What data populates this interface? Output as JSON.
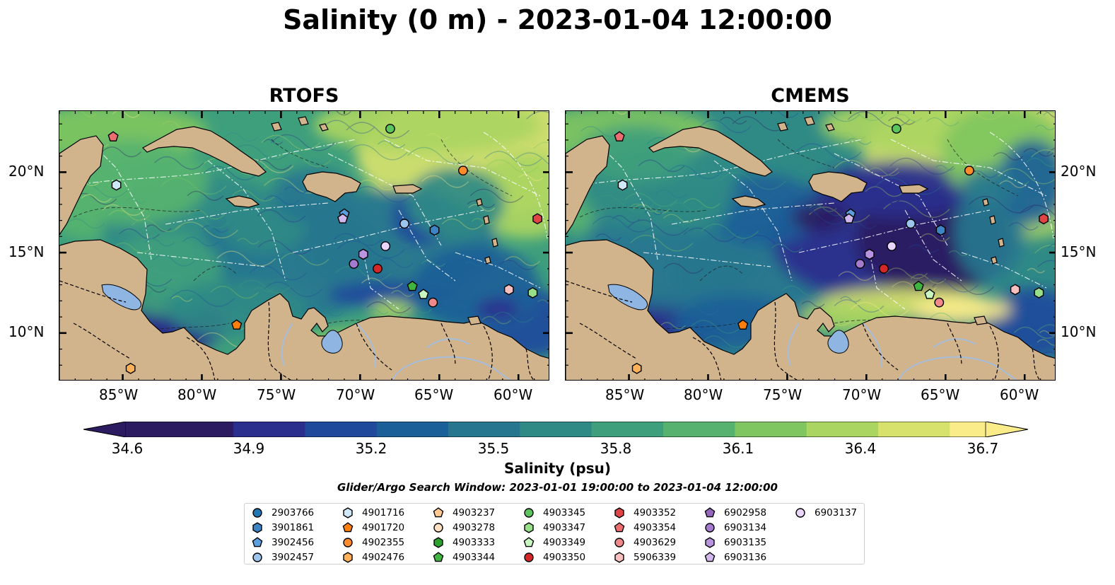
{
  "title": "Salinity (0 m) - 2023-01-04 12:00:00",
  "panels": [
    {
      "title": "RTOFS",
      "variant": "rtofs"
    },
    {
      "title": "CMEMS",
      "variant": "cmems"
    }
  ],
  "axes": {
    "lon_ticks": [
      "85°W",
      "80°W",
      "75°W",
      "70°W",
      "65°W",
      "60°W"
    ],
    "lat_ticks": [
      "20°N",
      "15°N",
      "10°N"
    ],
    "lon_range": [
      -89,
      -58
    ],
    "lat_range": [
      7.0,
      23.8
    ]
  },
  "colorbar": {
    "label": "Salinity (psu)",
    "ticks": [
      "34.6",
      "34.9",
      "35.2",
      "35.5",
      "35.8",
      "36.1",
      "36.4",
      "36.7"
    ],
    "range": [
      34.6,
      36.7
    ],
    "cmap": [
      "#2c1b61",
      "#2a2f8e",
      "#1f4a9c",
      "#1b5f98",
      "#26768f",
      "#2f8a86",
      "#3e9f7c",
      "#56b36f",
      "#7fc560",
      "#aad561",
      "#d7e26c",
      "#fbec8a"
    ],
    "extend": "both"
  },
  "search_window": "Glider/Argo Search Window: 2023-01-01 19:00:00 to 2023-01-04 12:00:00",
  "colors": {
    "land": "#d2b48c",
    "river": "#a6bddb",
    "lake": "#8fb5e3"
  },
  "floats": [
    {
      "id": "2903766",
      "marker": "circle",
      "color": "#1f77b4",
      "lon": null,
      "lat": null
    },
    {
      "id": "3901861",
      "marker": "hexagon",
      "color": "#3c84c4",
      "lon": -65.3,
      "lat": 16.4
    },
    {
      "id": "3902456",
      "marker": "pentagon",
      "color": "#5b9fde",
      "lon": -71.0,
      "lat": 17.4
    },
    {
      "id": "3902457",
      "marker": "circle",
      "color": "#9bc5ee",
      "lon": -67.2,
      "lat": 16.8
    },
    {
      "id": "4901716",
      "marker": "hexagon",
      "color": "#cfe8f8",
      "lon": -85.4,
      "lat": 19.2
    },
    {
      "id": "4901720",
      "marker": "pentagon",
      "color": "#ff7f0e",
      "lon": -77.8,
      "lat": 10.5
    },
    {
      "id": "4902355",
      "marker": "circle",
      "color": "#ff8c2a",
      "lon": -63.5,
      "lat": 20.1
    },
    {
      "id": "4902476",
      "marker": "hexagon",
      "color": "#ffb158",
      "lon": -84.5,
      "lat": 7.8
    },
    {
      "id": "4903237",
      "marker": "pentagon",
      "color": "#ffc98f",
      "lon": null,
      "lat": null
    },
    {
      "id": "4903278",
      "marker": "circle",
      "color": "#ffe0c2",
      "lon": null,
      "lat": null
    },
    {
      "id": "4903333",
      "marker": "hexagon",
      "color": "#2ca02c",
      "lon": null,
      "lat": null
    },
    {
      "id": "4903344",
      "marker": "pentagon",
      "color": "#3fb43f",
      "lon": -66.7,
      "lat": 12.9
    },
    {
      "id": "4903345",
      "marker": "circle",
      "color": "#5cc45c",
      "lon": -68.1,
      "lat": 22.7
    },
    {
      "id": "4903347",
      "marker": "hexagon",
      "color": "#98df8a",
      "lon": -59.1,
      "lat": 12.5
    },
    {
      "id": "4903349",
      "marker": "pentagon",
      "color": "#c8f5c0",
      "lon": -66.0,
      "lat": 12.4
    },
    {
      "id": "4903350",
      "marker": "circle",
      "color": "#d62728",
      "lon": -68.9,
      "lat": 14.0
    },
    {
      "id": "4903352",
      "marker": "hexagon",
      "color": "#e04444",
      "lon": -58.8,
      "lat": 17.1
    },
    {
      "id": "4903354",
      "marker": "pentagon",
      "color": "#ec6e6e",
      "lon": -85.6,
      "lat": 22.2
    },
    {
      "id": "4903629",
      "marker": "circle",
      "color": "#f08a8a",
      "lon": -65.4,
      "lat": 11.9
    },
    {
      "id": "5906339",
      "marker": "hexagon",
      "color": "#f8c0c0",
      "lon": -60.6,
      "lat": 12.7
    },
    {
      "id": "6902958",
      "marker": "pentagon",
      "color": "#9467bd",
      "lon": null,
      "lat": null
    },
    {
      "id": "6903134",
      "marker": "circle",
      "color": "#a57bd0",
      "lon": -70.4,
      "lat": 14.3
    },
    {
      "id": "6903135",
      "marker": "hexagon",
      "color": "#b994e0",
      "lon": -69.8,
      "lat": 14.9
    },
    {
      "id": "6903136",
      "marker": "pentagon",
      "color": "#d2b6ee",
      "lon": -71.1,
      "lat": 17.1
    },
    {
      "id": "6903137",
      "marker": "circle",
      "color": "#ead6fb",
      "lon": -68.4,
      "lat": 15.4
    }
  ]
}
